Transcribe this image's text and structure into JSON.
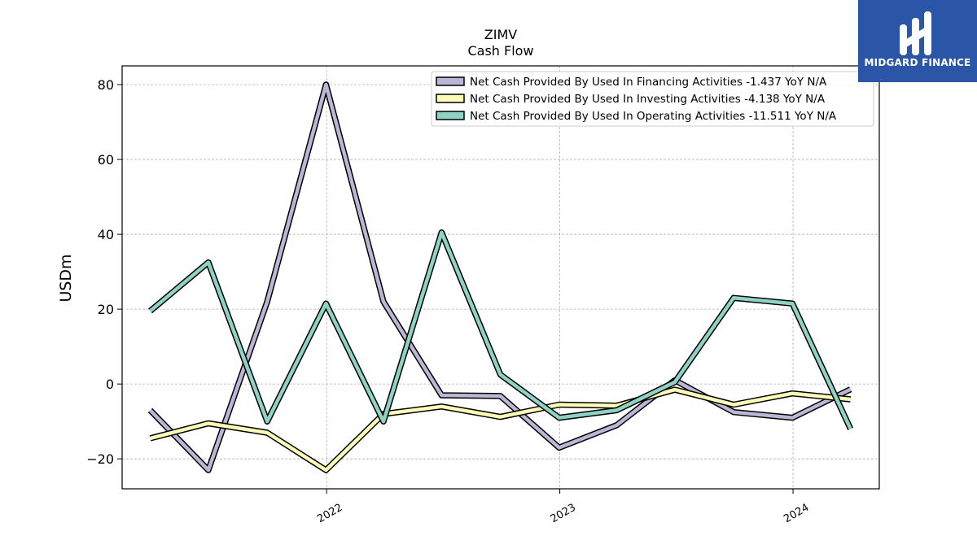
{
  "logo": {
    "text": "MIDGARD FINANCE",
    "background": "#2b56a8"
  },
  "chart_data": {
    "type": "line",
    "title": "ZIMV",
    "subtitle": "Cash Flow",
    "xlabel": "",
    "ylabel": "USDm",
    "x": [
      "2021-03-31",
      "2021-06-30",
      "2021-09-30",
      "2021-12-31",
      "2022-03-31",
      "2022-06-30",
      "2022-09-30",
      "2022-12-31",
      "2023-03-31",
      "2023-06-30",
      "2023-09-30",
      "2023-12-31",
      "2024-03-31"
    ],
    "x_ticks": [
      "2022",
      "2023",
      "2024"
    ],
    "x_tick_dates": [
      "2022-01-01",
      "2023-01-01",
      "2024-01-01"
    ],
    "xlim": [
      "2021-02-15",
      "2024-05-15"
    ],
    "y_ticks": [
      -20,
      0,
      20,
      40,
      60,
      80
    ],
    "ylim": [
      -28,
      85
    ],
    "grid": true,
    "legend_position": "top-right",
    "series": [
      {
        "name": "Net Cash Provided By Used In Financing Activities  -1.437 YoY N/A",
        "color": "#bcb6d6",
        "values": [
          -7,
          -23,
          22,
          80,
          22,
          -3,
          -3.2,
          -17,
          -11,
          1,
          -7.5,
          -9,
          -1.4
        ]
      },
      {
        "name": "Net Cash Provided By Used In Investing Activities  -4.138 YoY N/A",
        "color": "#fdfdb7",
        "values": [
          -14.5,
          -10.5,
          -13,
          -23,
          -8,
          -6,
          -8.8,
          -5.5,
          -5.8,
          -1.5,
          -5.5,
          -2.5,
          -4.1
        ]
      },
      {
        "name": "Net Cash Provided By Used In Operating Activities  -11.511 YoY N/A",
        "color": "#8dd2c4",
        "values": [
          19.5,
          32.5,
          -10,
          21.5,
          -10,
          40.5,
          2.5,
          -9,
          -7,
          0.5,
          23,
          21.5,
          -12
        ]
      }
    ]
  }
}
